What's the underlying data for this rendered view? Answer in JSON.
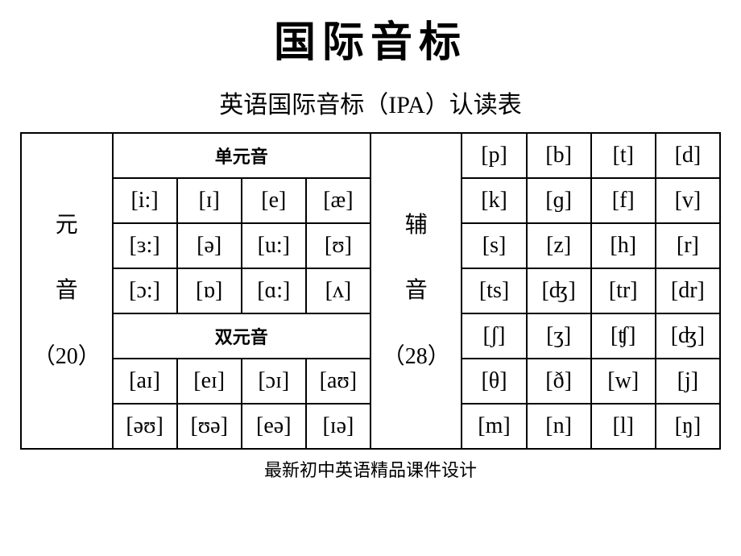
{
  "mainTitle": "国际音标",
  "subTitle": "英语国际音标（IPA）认读表",
  "vowelLabel": {
    "char1": "元",
    "char2": "音",
    "count": "（20）"
  },
  "consonantLabel": {
    "char1": "辅",
    "char2": "音",
    "count": "（28）"
  },
  "monoHeader": "单元音",
  "diphHeader": "双元音",
  "vowels": {
    "mono": {
      "r1": [
        "[i:]",
        "[ɪ]",
        "[e]",
        "[æ]"
      ],
      "r2": [
        "[ɜ:]",
        "[ə]",
        "[u:]",
        "[ʊ]"
      ],
      "r3": [
        "[ɔ:]",
        "[ɒ]",
        "[ɑ:]",
        "[ʌ]"
      ]
    },
    "diph": {
      "r1": [
        "[aɪ]",
        "[eɪ]",
        "[ɔɪ]",
        "[aʊ]"
      ],
      "r2": [
        "[əʊ]",
        "[ʊə]",
        "[eə]",
        "[ɪə]"
      ]
    }
  },
  "consonants": {
    "r1": [
      "[p]",
      "[b]",
      "[t]",
      "[d]"
    ],
    "r2": [
      "[k]",
      "[ɡ]",
      "[f]",
      "[v]"
    ],
    "r3": [
      "[s]",
      "[z]",
      "[h]",
      "[r]"
    ],
    "r4": [
      "[ts]",
      "[ʤ]",
      "[tr]",
      "[dr]"
    ],
    "r5": [
      "[ʃ]",
      "[ʒ]",
      "[ʧ]",
      "[ʤ]"
    ],
    "r6": [
      "[θ]",
      "[ð]",
      "[w]",
      "[j]"
    ],
    "r7": [
      "[m]",
      "[n]",
      "[l]",
      "[ŋ]"
    ]
  },
  "footer": "最新初中英语精品课件设计"
}
